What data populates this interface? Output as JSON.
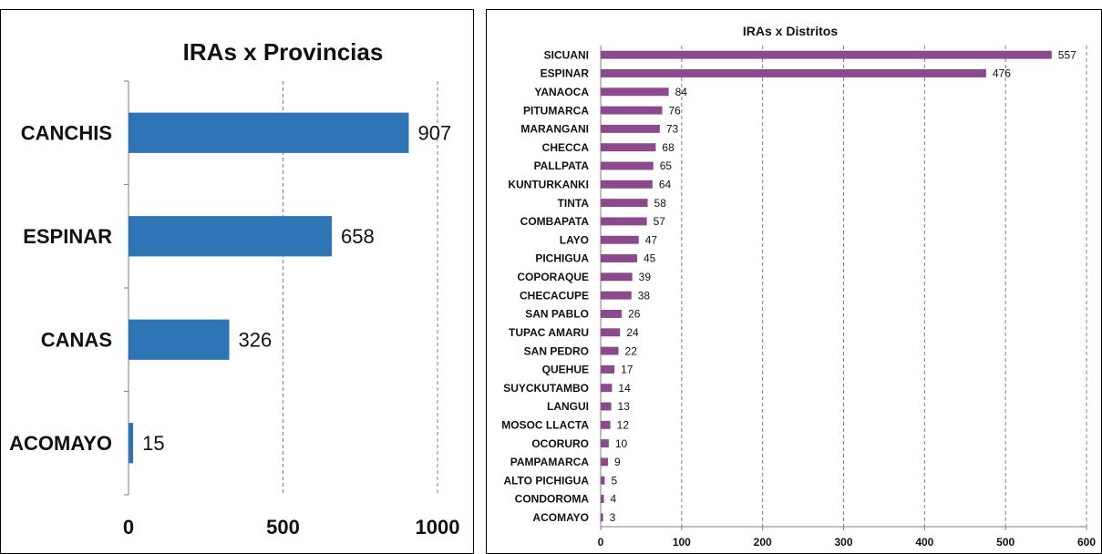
{
  "chart_data": [
    {
      "type": "bar",
      "orientation": "horizontal",
      "title": "IRAs x Provincias",
      "categories": [
        "CANCHIS",
        "ESPINAR",
        "CANAS",
        "ACOMAYO"
      ],
      "values": [
        907,
        658,
        326,
        15
      ],
      "xlim": [
        0,
        1000
      ],
      "xticks": [
        0,
        500,
        1000
      ],
      "xtick_labels": [
        "0",
        "500",
        "1000"
      ],
      "grid": "vertical dashed",
      "legend": "none",
      "bar_color": "#2e75b6"
    },
    {
      "type": "bar",
      "orientation": "horizontal",
      "title": "IRAs x Distritos",
      "categories": [
        "SICUANI",
        "ESPINAR",
        "YANAOCA",
        "PITUMARCA",
        "MARANGANI",
        "CHECCA",
        "PALLPATA",
        "KUNTURKANKI",
        "TINTA",
        "COMBAPATA",
        "LAYO",
        "PICHIGUA",
        "COPORAQUE",
        "CHECACUPE",
        "SAN PABLO",
        "TUPAC AMARU",
        "SAN PEDRO",
        "QUEHUE",
        "SUYCKUTAMBO",
        "LANGUI",
        "MOSOC LLACTA",
        "OCORURO",
        "PAMPAMARCA",
        "ALTO PICHIGUA",
        "CONDOROMA",
        "ACOMAYO"
      ],
      "values": [
        557,
        476,
        84,
        76,
        73,
        68,
        65,
        64,
        58,
        57,
        47,
        45,
        39,
        38,
        26,
        24,
        22,
        17,
        14,
        13,
        12,
        10,
        9,
        5,
        4,
        3
      ],
      "xlim": [
        0,
        600
      ],
      "xticks": [
        0,
        100,
        200,
        300,
        400,
        500,
        600
      ],
      "xtick_labels": [
        "0",
        "100",
        "200",
        "300",
        "400",
        "500",
        "600"
      ],
      "grid": "vertical dashed",
      "legend": "none",
      "bar_color": "#8b4a8c"
    }
  ]
}
